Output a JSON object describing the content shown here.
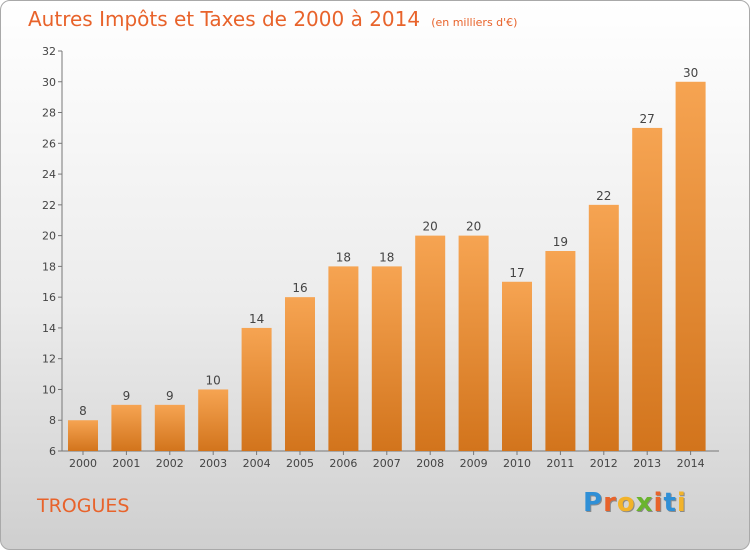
{
  "header": {
    "title": "Autres Impôts et Taxes de 2000 à 2014",
    "unit": "(en milliers d'€)"
  },
  "footer": {
    "commune": "TROGUES",
    "logo_text": "Proxiti",
    "logo_colors": [
      "#2f8fd6",
      "#e8632b",
      "#f2b32a",
      "#6ab42d",
      "#e8632b",
      "#2f8fd6",
      "#f2b32a"
    ]
  },
  "colors": {
    "bar_top": "#f6a452",
    "bar_bottom": "#d2741c",
    "title": "#e8632b"
  },
  "chart_data": {
    "type": "bar",
    "title": "Autres Impôts et Taxes de 2000 à 2014",
    "subtitle": "(en milliers d'€)",
    "categories": [
      "2000",
      "2001",
      "2002",
      "2003",
      "2004",
      "2005",
      "2006",
      "2007",
      "2008",
      "2009",
      "2010",
      "2011",
      "2012",
      "2013",
      "2014"
    ],
    "values": [
      8,
      9,
      9,
      10,
      14,
      16,
      18,
      18,
      20,
      20,
      17,
      19,
      22,
      27,
      30
    ],
    "xlabel": "",
    "ylabel": "",
    "ylim": [
      6,
      32
    ],
    "yticks": [
      6,
      8,
      10,
      12,
      14,
      16,
      18,
      20,
      22,
      24,
      26,
      28,
      30,
      32
    ],
    "grid": false,
    "legend": "none"
  }
}
